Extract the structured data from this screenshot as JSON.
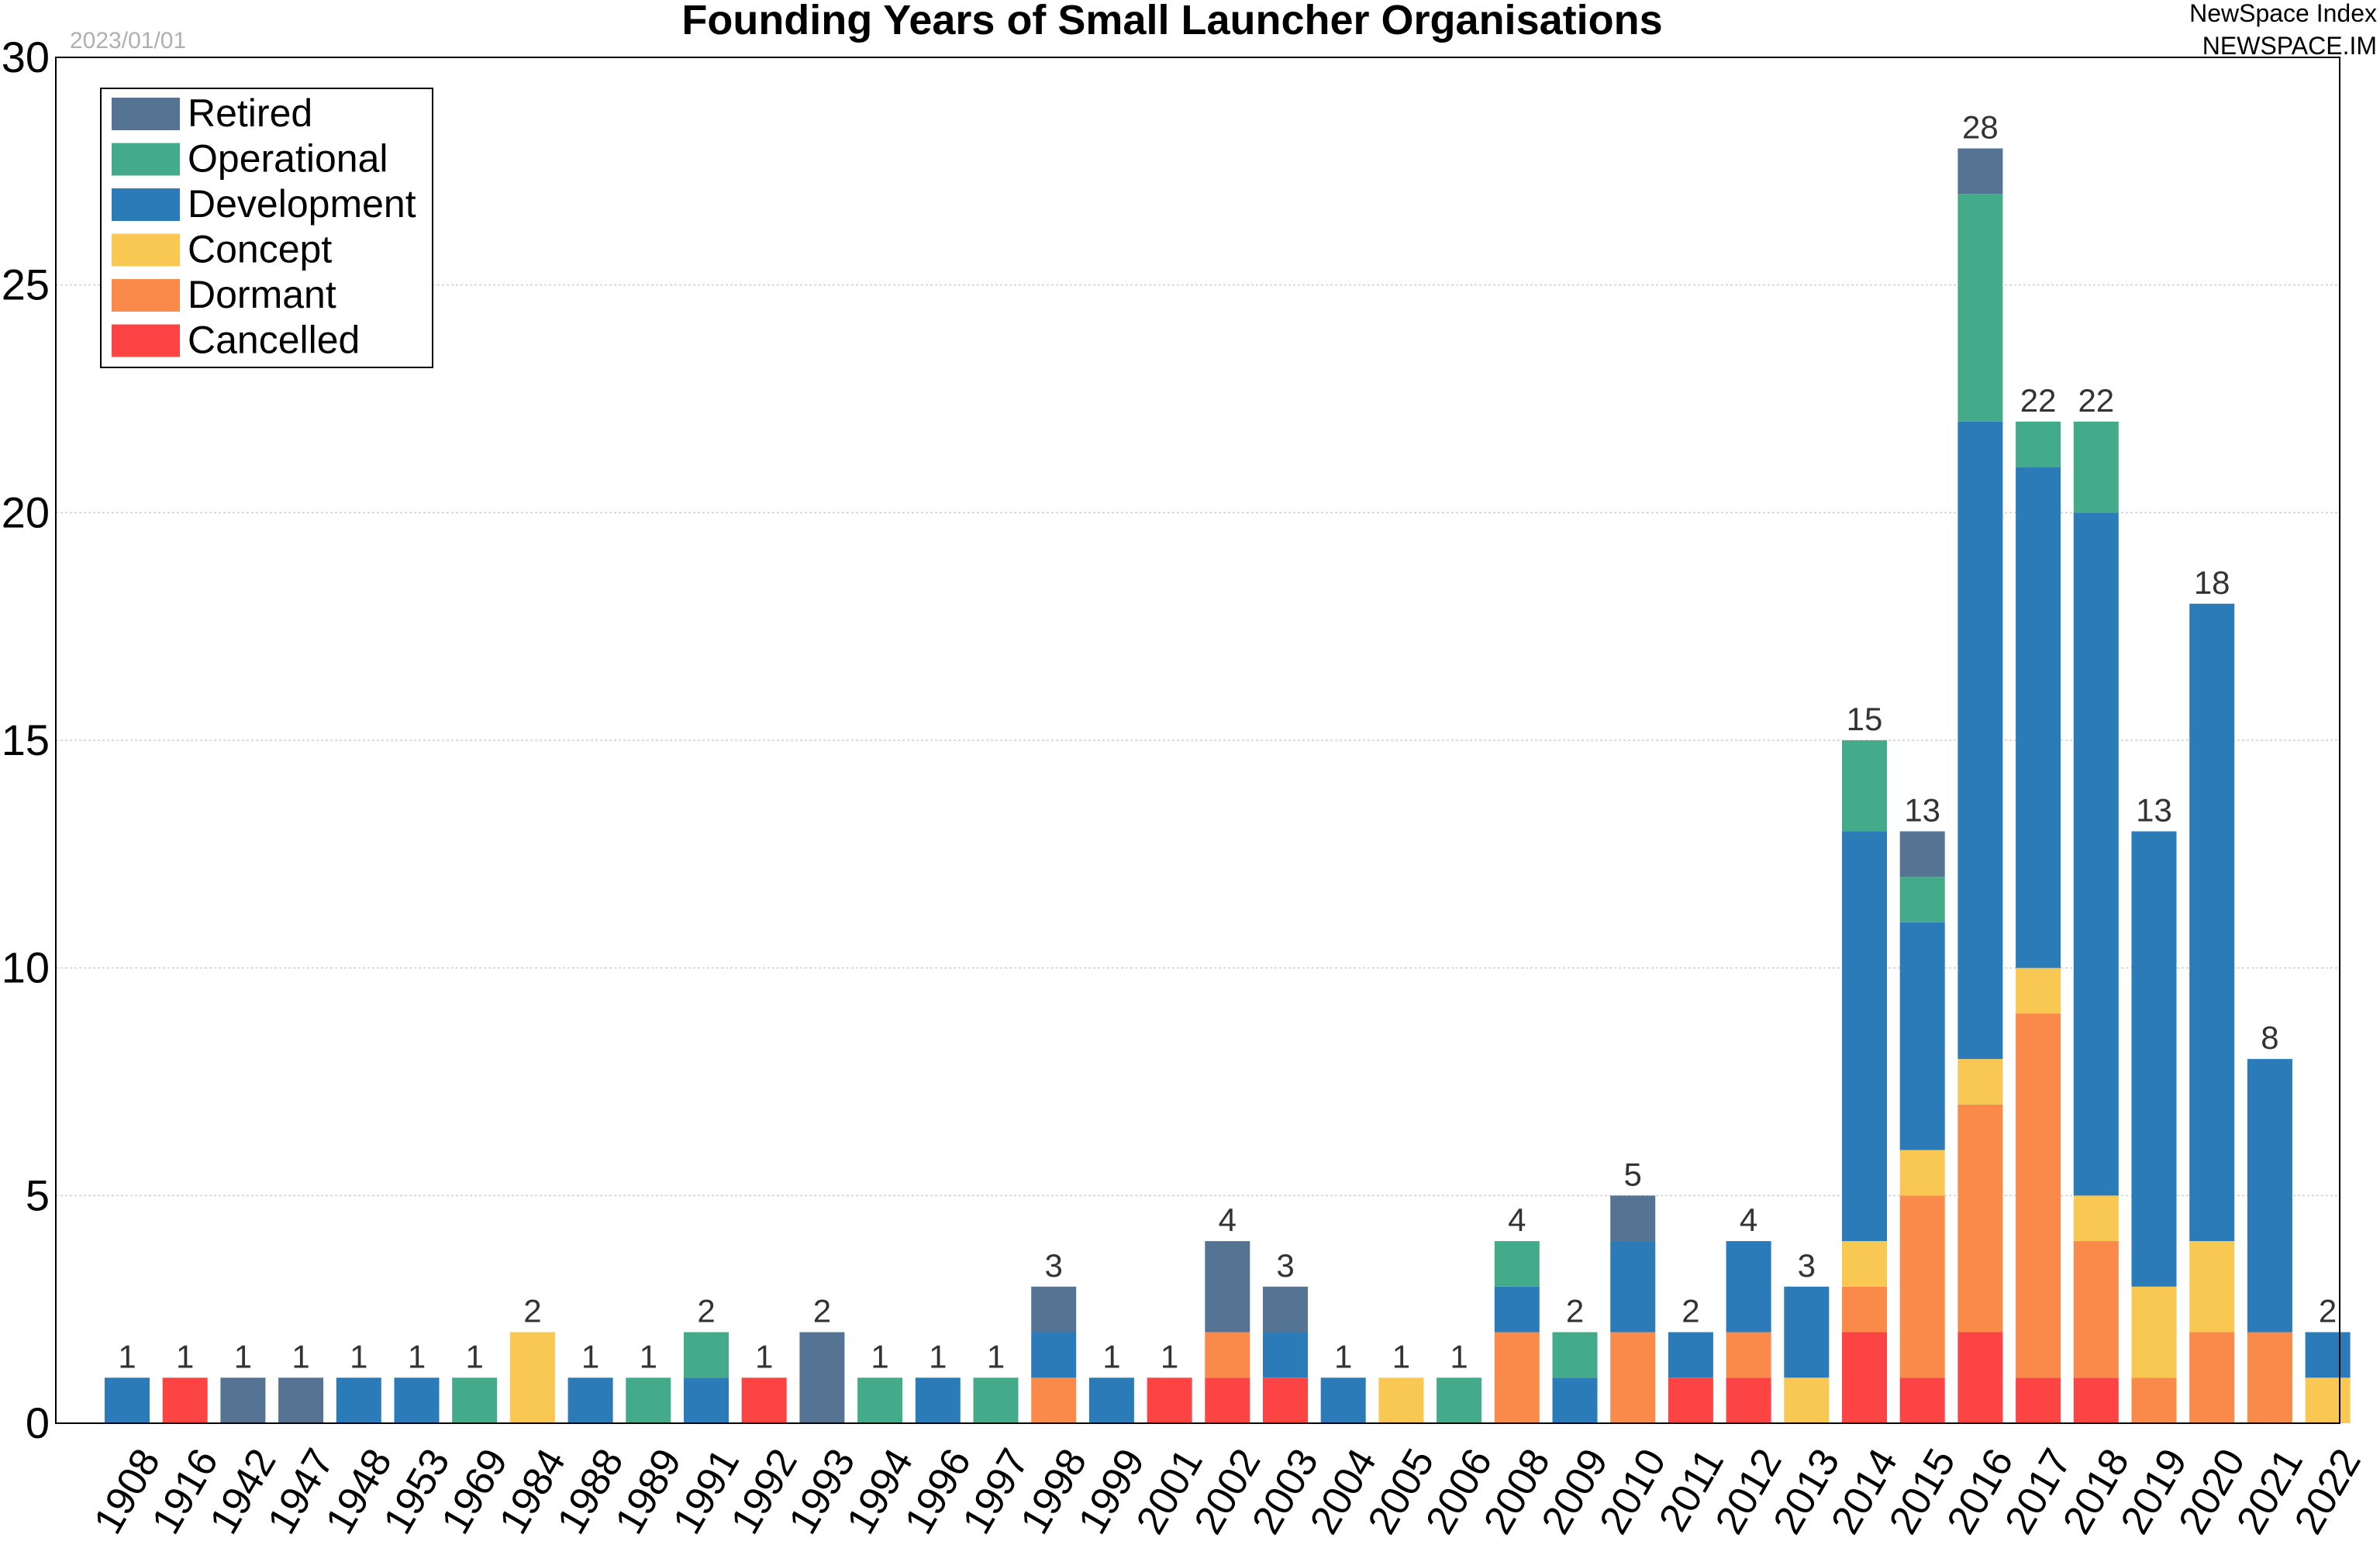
{
  "header": {
    "title": "Founding Years of Small Launcher Organisations",
    "date": "2023/01/01",
    "brand_line1": "NewSpace Index",
    "brand_line2": "NEWSPACE.IM"
  },
  "chart_data": {
    "type": "bar",
    "stacked": true,
    "title": "Founding Years of Small Launcher Organisations",
    "xlabel": "",
    "ylabel": "",
    "ylim": [
      0,
      30
    ],
    "yticks": [
      0,
      5,
      10,
      15,
      20,
      25,
      30
    ],
    "grid": true,
    "legend_position": "top-left",
    "categories": [
      "1908",
      "1916",
      "1942",
      "1947",
      "1948",
      "1953",
      "1969",
      "1984",
      "1988",
      "1989",
      "1991",
      "1992",
      "1993",
      "1994",
      "1996",
      "1997",
      "1998",
      "1999",
      "2001",
      "2002",
      "2003",
      "2004",
      "2005",
      "2006",
      "2008",
      "2009",
      "2010",
      "2011",
      "2012",
      "2013",
      "2014",
      "2015",
      "2016",
      "2017",
      "2018",
      "2019",
      "2020",
      "2021",
      "2022"
    ],
    "series": [
      {
        "name": "Cancelled",
        "color": "#fc4444",
        "values": [
          0,
          1,
          0,
          0,
          0,
          0,
          0,
          0,
          0,
          0,
          0,
          1,
          0,
          0,
          0,
          0,
          0,
          0,
          1,
          1,
          1,
          0,
          0,
          0,
          0,
          0,
          0,
          1,
          1,
          0,
          2,
          1,
          2,
          1,
          1,
          0,
          0,
          0,
          0
        ]
      },
      {
        "name": "Dormant",
        "color": "#f98a4a",
        "values": [
          0,
          0,
          0,
          0,
          0,
          0,
          0,
          0,
          0,
          0,
          0,
          0,
          0,
          0,
          0,
          0,
          1,
          0,
          0,
          1,
          0,
          0,
          0,
          0,
          2,
          0,
          2,
          0,
          1,
          0,
          1,
          4,
          5,
          8,
          3,
          1,
          2,
          2,
          0
        ]
      },
      {
        "name": "Concept",
        "color": "#f8c853",
        "values": [
          0,
          0,
          0,
          0,
          0,
          0,
          0,
          2,
          0,
          0,
          0,
          0,
          0,
          0,
          0,
          0,
          0,
          0,
          0,
          0,
          0,
          0,
          1,
          0,
          0,
          0,
          0,
          0,
          0,
          1,
          1,
          1,
          1,
          1,
          1,
          2,
          2,
          0,
          1
        ]
      },
      {
        "name": "Development",
        "color": "#2b7bb9",
        "values": [
          1,
          0,
          0,
          0,
          1,
          1,
          0,
          0,
          1,
          0,
          1,
          0,
          0,
          0,
          1,
          0,
          1,
          1,
          0,
          0,
          1,
          1,
          0,
          0,
          1,
          1,
          2,
          1,
          2,
          2,
          9,
          5,
          14,
          11,
          15,
          10,
          14,
          6,
          1
        ]
      },
      {
        "name": "Operational",
        "color": "#44ab8a",
        "values": [
          0,
          0,
          0,
          0,
          0,
          0,
          1,
          0,
          0,
          1,
          1,
          0,
          0,
          1,
          0,
          1,
          0,
          0,
          0,
          0,
          0,
          0,
          0,
          1,
          1,
          1,
          0,
          0,
          0,
          0,
          2,
          1,
          5,
          1,
          2,
          0,
          0,
          0,
          0
        ]
      },
      {
        "name": "Retired",
        "color": "#557494",
        "values": [
          0,
          0,
          1,
          1,
          0,
          0,
          0,
          0,
          0,
          0,
          0,
          0,
          2,
          0,
          0,
          0,
          1,
          0,
          0,
          2,
          1,
          0,
          0,
          0,
          0,
          0,
          1,
          0,
          0,
          0,
          0,
          1,
          1,
          0,
          0,
          0,
          0,
          0,
          0
        ]
      }
    ],
    "totals": [
      1,
      1,
      1,
      1,
      1,
      1,
      1,
      2,
      1,
      1,
      2,
      1,
      2,
      1,
      1,
      1,
      3,
      1,
      1,
      4,
      3,
      1,
      1,
      1,
      4,
      2,
      5,
      2,
      4,
      3,
      15,
      13,
      28,
      22,
      22,
      13,
      18,
      8,
      2
    ],
    "legend_order": [
      "Retired",
      "Operational",
      "Development",
      "Concept",
      "Dormant",
      "Cancelled"
    ]
  }
}
